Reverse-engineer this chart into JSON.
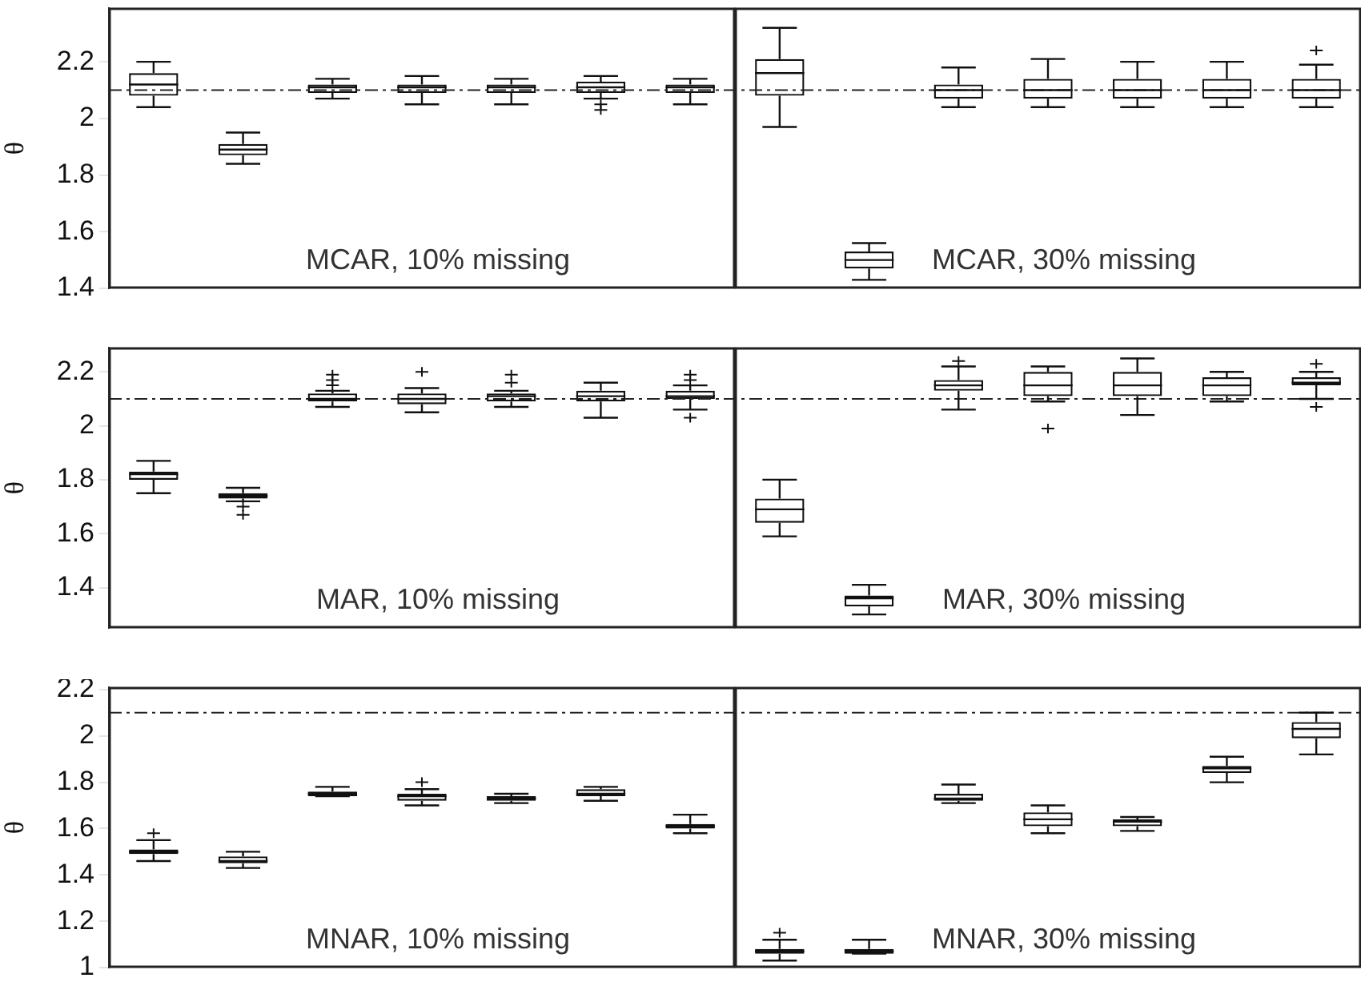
{
  "chart_data": [
    {
      "type": "box",
      "ylabel": "θ",
      "ylim": [
        1.4,
        2.39
      ],
      "yticks": [
        1.4,
        1.6,
        1.8,
        2,
        2.2
      ],
      "categories": [
        null,
        null,
        null,
        null,
        null,
        null,
        null,
        null,
        null,
        null,
        null,
        null,
        null,
        null
      ],
      "ref_lines": [
        {
          "axis": "y",
          "value": 2.1,
          "line_style": "dashdot"
        }
      ],
      "annotations": [
        "MCAR, 10% missing",
        "MCAR, 30% missing"
      ],
      "boxes": [
        {
          "low": 2.04,
          "q1": 2.08,
          "median": 2.12,
          "q3": 2.16,
          "high": 2.2
        },
        {
          "low": 1.84,
          "q1": 1.87,
          "median": 1.89,
          "q3": 1.91,
          "high": 1.95
        },
        {
          "low": 2.07,
          "q1": 2.09,
          "median": 2.11,
          "q3": 2.12,
          "high": 2.14
        },
        {
          "low": 2.05,
          "q1": 2.09,
          "median": 2.11,
          "q3": 2.12,
          "high": 2.15
        },
        {
          "low": 2.05,
          "q1": 2.09,
          "median": 2.11,
          "q3": 2.12,
          "high": 2.14
        },
        {
          "low": 2.07,
          "q1": 2.09,
          "median": 2.11,
          "q3": 2.13,
          "high": 2.15,
          "outliers": [
            2.05,
            2.03
          ]
        },
        {
          "low": 2.05,
          "q1": 2.09,
          "median": 2.11,
          "q3": 2.12,
          "high": 2.14
        },
        {
          "low": 1.97,
          "q1": 2.08,
          "median": 2.16,
          "q3": 2.21,
          "high": 2.32
        },
        {
          "low": 1.43,
          "q1": 1.47,
          "median": 1.5,
          "q3": 1.53,
          "high": 1.56
        },
        {
          "low": 2.04,
          "q1": 2.07,
          "median": 2.1,
          "q3": 2.12,
          "high": 2.18
        },
        {
          "low": 2.04,
          "q1": 2.07,
          "median": 2.1,
          "q3": 2.14,
          "high": 2.21
        },
        {
          "low": 2.04,
          "q1": 2.07,
          "median": 2.1,
          "q3": 2.14,
          "high": 2.2
        },
        {
          "low": 2.04,
          "q1": 2.07,
          "median": 2.1,
          "q3": 2.14,
          "high": 2.2
        },
        {
          "low": 2.04,
          "q1": 2.07,
          "median": 2.1,
          "q3": 2.14,
          "high": 2.19,
          "outliers": [
            2.24
          ]
        }
      ]
    },
    {
      "type": "box",
      "ylabel": "θ",
      "ylim": [
        1.25,
        2.29
      ],
      "yticks": [
        1.4,
        1.6,
        1.8,
        2,
        2.2
      ],
      "categories": [
        null,
        null,
        null,
        null,
        null,
        null,
        null,
        null,
        null,
        null,
        null,
        null,
        null,
        null
      ],
      "ref_lines": [
        {
          "axis": "y",
          "value": 2.1,
          "line_style": "dashdot"
        }
      ],
      "annotations": [
        "MAR, 10% missing",
        "MAR, 30% missing"
      ],
      "boxes": [
        {
          "low": 1.75,
          "q1": 1.8,
          "median": 1.82,
          "q3": 1.83,
          "high": 1.87
        },
        {
          "low": 1.72,
          "q1": 1.73,
          "median": 1.74,
          "q3": 1.75,
          "high": 1.77,
          "outliers": [
            1.7,
            1.67
          ]
        },
        {
          "low": 2.07,
          "q1": 2.09,
          "median": 2.1,
          "q3": 2.12,
          "high": 2.13,
          "outliers": [
            2.15,
            2.17,
            2.19
          ]
        },
        {
          "low": 2.05,
          "q1": 2.08,
          "median": 2.1,
          "q3": 2.12,
          "high": 2.14,
          "outliers": [
            2.2
          ]
        },
        {
          "low": 2.07,
          "q1": 2.09,
          "median": 2.11,
          "q3": 2.12,
          "high": 2.13,
          "outliers": [
            2.16,
            2.19
          ]
        },
        {
          "low": 2.03,
          "q1": 2.09,
          "median": 2.11,
          "q3": 2.13,
          "high": 2.16
        },
        {
          "low": 2.06,
          "q1": 2.1,
          "median": 2.11,
          "q3": 2.13,
          "high": 2.15,
          "outliers": [
            2.17,
            2.19,
            2.03
          ]
        },
        {
          "low": 1.59,
          "q1": 1.64,
          "median": 1.69,
          "q3": 1.73,
          "high": 1.8
        },
        {
          "low": 1.3,
          "q1": 1.33,
          "median": 1.36,
          "q3": 1.37,
          "high": 1.41
        },
        {
          "low": 2.06,
          "q1": 2.13,
          "median": 2.15,
          "q3": 2.17,
          "high": 2.22,
          "outliers": [
            2.24
          ]
        },
        {
          "low": 2.09,
          "q1": 2.11,
          "median": 2.15,
          "q3": 2.2,
          "high": 2.22,
          "outliers": [
            1.99
          ]
        },
        {
          "low": 2.04,
          "q1": 2.11,
          "median": 2.15,
          "q3": 2.2,
          "high": 2.25
        },
        {
          "low": 2.09,
          "q1": 2.11,
          "median": 2.15,
          "q3": 2.18,
          "high": 2.2
        },
        {
          "low": 2.1,
          "q1": 2.15,
          "median": 2.16,
          "q3": 2.18,
          "high": 2.2,
          "outliers": [
            2.23,
            2.07
          ]
        }
      ]
    },
    {
      "type": "box",
      "ylabel": "θ",
      "ylim": [
        1.0,
        2.21
      ],
      "yticks": [
        1,
        1.2,
        1.4,
        1.6,
        1.8,
        2,
        2.2
      ],
      "categories": [
        null,
        null,
        null,
        null,
        null,
        null,
        null,
        null,
        null,
        null,
        null,
        null,
        null,
        null
      ],
      "ref_lines": [
        {
          "axis": "y",
          "value": 2.1,
          "line_style": "dashdot"
        }
      ],
      "annotations": [
        "MNAR, 10% missing",
        "MNAR, 30% missing"
      ],
      "boxes": [
        {
          "low": 1.46,
          "q1": 1.49,
          "median": 1.5,
          "q3": 1.51,
          "high": 1.55,
          "outliers": [
            1.58
          ]
        },
        {
          "low": 1.43,
          "q1": 1.45,
          "median": 1.46,
          "q3": 1.48,
          "high": 1.5
        },
        {
          "low": 1.74,
          "q1": 1.74,
          "median": 1.75,
          "q3": 1.76,
          "high": 1.78
        },
        {
          "low": 1.7,
          "q1": 1.72,
          "median": 1.74,
          "q3": 1.75,
          "high": 1.77,
          "outliers": [
            1.8
          ]
        },
        {
          "low": 1.71,
          "q1": 1.72,
          "median": 1.73,
          "q3": 1.74,
          "high": 1.75
        },
        {
          "low": 1.72,
          "q1": 1.74,
          "median": 1.75,
          "q3": 1.77,
          "high": 1.78
        },
        {
          "low": 1.58,
          "q1": 1.6,
          "median": 1.61,
          "q3": 1.62,
          "high": 1.66
        },
        {
          "low": 1.03,
          "q1": 1.06,
          "median": 1.07,
          "q3": 1.08,
          "high": 1.12,
          "outliers": [
            1.15
          ]
        },
        {
          "low": 1.06,
          "q1": 1.06,
          "median": 1.07,
          "q3": 1.08,
          "high": 1.12
        },
        {
          "low": 1.71,
          "q1": 1.72,
          "median": 1.73,
          "q3": 1.75,
          "high": 1.79
        },
        {
          "low": 1.58,
          "q1": 1.61,
          "median": 1.64,
          "q3": 1.67,
          "high": 1.7
        },
        {
          "low": 1.59,
          "q1": 1.61,
          "median": 1.63,
          "q3": 1.64,
          "high": 1.65
        },
        {
          "low": 1.8,
          "q1": 1.84,
          "median": 1.86,
          "q3": 1.87,
          "high": 1.91
        },
        {
          "low": 1.92,
          "q1": 1.99,
          "median": 2.03,
          "q3": 2.06,
          "high": 2.1
        }
      ]
    }
  ]
}
